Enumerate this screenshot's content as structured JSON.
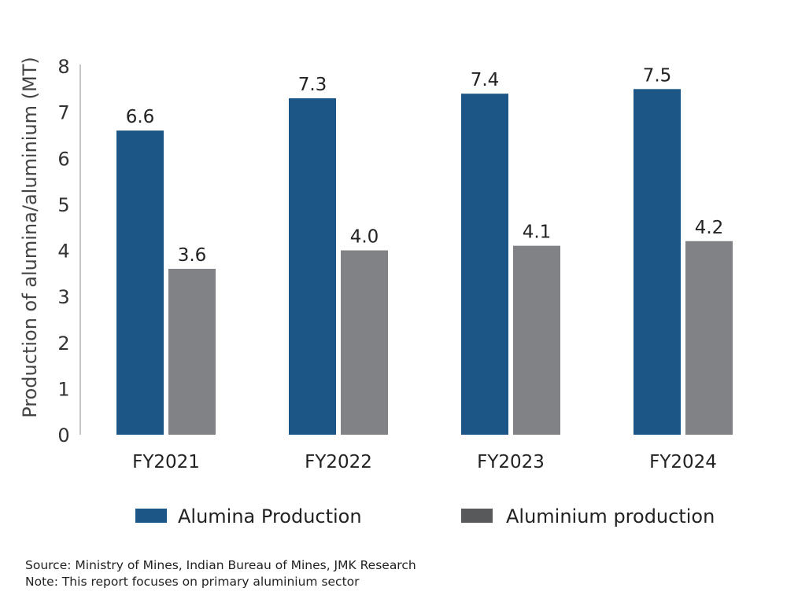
{
  "chart_data": {
    "type": "bar",
    "categories": [
      "FY2021",
      "FY2022",
      "FY2023",
      "FY2024"
    ],
    "series": [
      {
        "name": "Alumina Production",
        "values": [
          6.6,
          7.3,
          7.4,
          7.5
        ],
        "color": "#1b5686"
      },
      {
        "name": "Aluminium production",
        "values": [
          3.6,
          4.0,
          4.1,
          4.2
        ],
        "color": "#808285"
      }
    ],
    "data_labels": [
      [
        "6.6",
        "7.3",
        "7.4",
        "7.5"
      ],
      [
        "3.6",
        "4.0",
        "4.1",
        "4.2"
      ]
    ],
    "ylabel": "Production of alumina/aluminium (MT)",
    "ylim": [
      0,
      8
    ],
    "yticks": [
      0,
      1,
      2,
      3,
      4,
      5,
      6,
      7,
      8
    ],
    "grid": false,
    "legend_position": "bottom",
    "legend_swatch_colors": [
      "#1b5686",
      "#58595b"
    ]
  },
  "notes": {
    "source": "Source: Ministry of Mines, Indian Bureau of Mines, JMK Research",
    "note": "Note: This report focuses on primary aluminium sector"
  }
}
